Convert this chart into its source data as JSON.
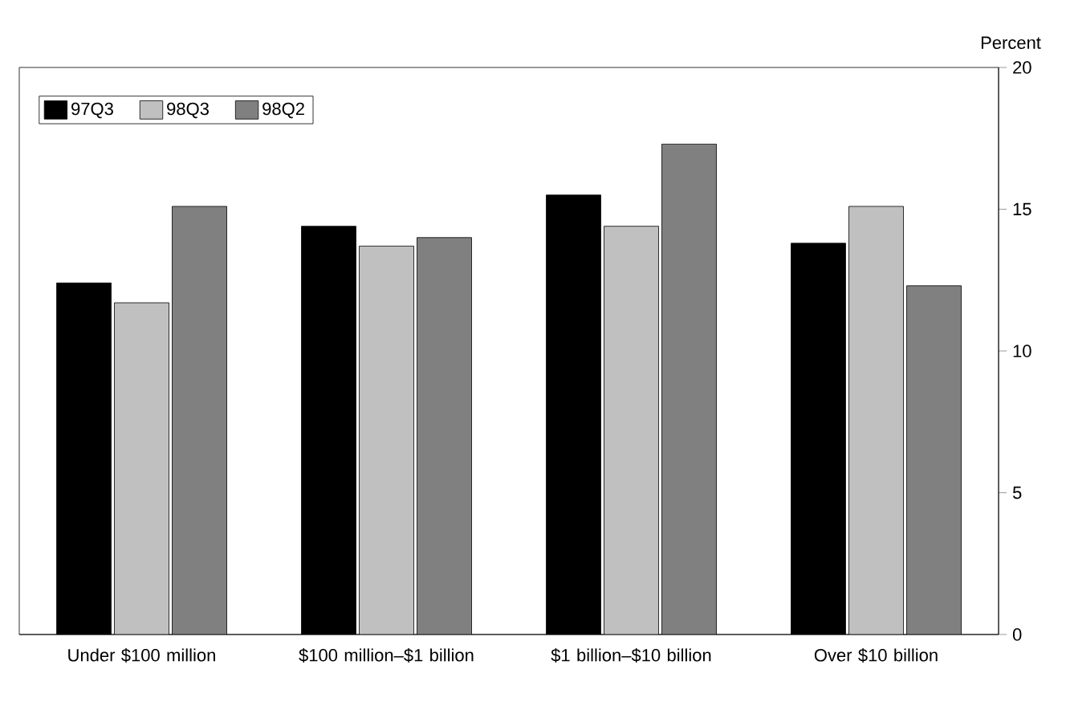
{
  "chart_data": {
    "type": "bar",
    "ylabel": "Percent",
    "categories": [
      "Under $100 million",
      "$100 million–$1 billion",
      "$1 billion–$10 billion",
      "Over $10 billion"
    ],
    "series": [
      {
        "name": "97Q3",
        "color": "#000000",
        "values": [
          12.4,
          14.4,
          15.5,
          13.8
        ]
      },
      {
        "name": "98Q3",
        "color": "#c0c0c0",
        "values": [
          11.7,
          13.7,
          14.4,
          15.1
        ]
      },
      {
        "name": "98Q2",
        "color": "#808080",
        "values": [
          15.1,
          14.0,
          17.3,
          12.3
        ]
      }
    ],
    "ylim": [
      0,
      20
    ],
    "yticks": [
      0,
      5,
      10,
      15,
      20
    ],
    "legend": "top left",
    "grid": false
  }
}
